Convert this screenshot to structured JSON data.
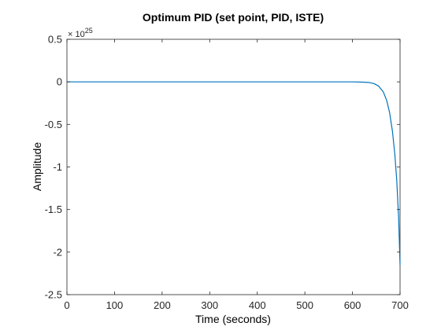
{
  "chart_data": {
    "type": "line",
    "title": "Optimum PID (set point, PID, ISTE)",
    "xlabel": "Time (seconds)",
    "ylabel": "Amplitude",
    "xlim": [
      0,
      700
    ],
    "ylim": [
      -2.5,
      0.5
    ],
    "y_exponent_base": "× 10",
    "y_exponent_power": "25",
    "xticks": [
      0,
      100,
      200,
      300,
      400,
      500,
      600,
      700
    ],
    "xtick_labels": [
      "0",
      "100",
      "200",
      "300",
      "400",
      "500",
      "600",
      "700"
    ],
    "yticks": [
      -2.5,
      -2,
      -1.5,
      -1,
      -0.5,
      0,
      0.5
    ],
    "ytick_labels": [
      "-2.5",
      "-2",
      "-1.5",
      "-1",
      "-0.5",
      "0",
      "0.5"
    ],
    "grid": false,
    "series": [
      {
        "color": "#0072bd",
        "x": [
          0,
          100,
          200,
          300,
          400,
          500,
          580,
          600,
          620,
          635,
          645,
          655,
          665,
          672,
          678,
          684,
          689,
          693,
          697,
          700
        ],
        "y": [
          0,
          0,
          0,
          0,
          0,
          0,
          0,
          0,
          -0.003,
          -0.008,
          -0.02,
          -0.05,
          -0.12,
          -0.22,
          -0.36,
          -0.58,
          -0.85,
          -1.15,
          -1.6,
          -2.15
        ]
      }
    ]
  }
}
